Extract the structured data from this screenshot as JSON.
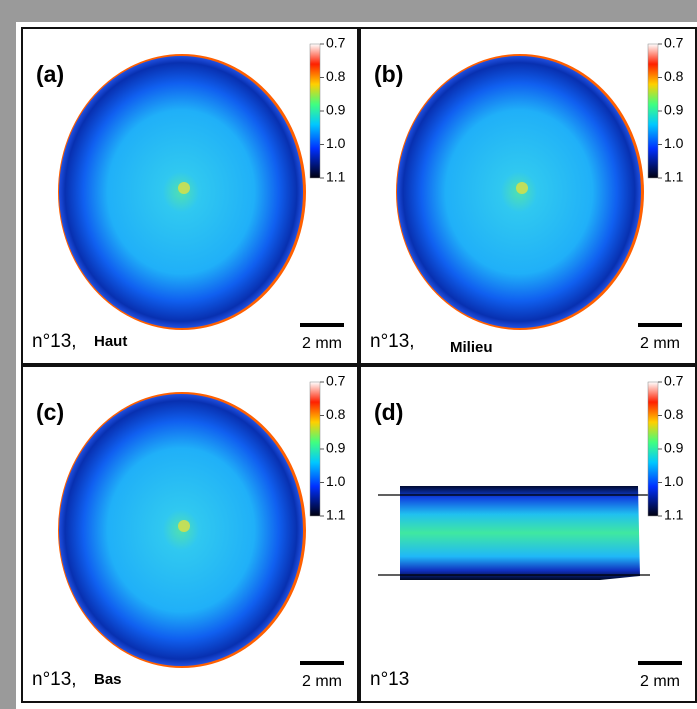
{
  "colorbar": {
    "ticks": [
      "0.7",
      "0.8",
      "0.9",
      "1.0",
      "1.1"
    ]
  },
  "panels": [
    {
      "label": "(a)",
      "sample": "n°13,",
      "position": "Haut",
      "scale": "2 mm"
    },
    {
      "label": "(b)",
      "sample": "n°13,",
      "position": "Milieu",
      "scale": "2 mm"
    },
    {
      "label": "(c)",
      "sample": "n°13,",
      "position": "Bas",
      "scale": "2 mm"
    },
    {
      "label": "(d)",
      "sample": "n°13",
      "scale": "2 mm"
    }
  ]
}
